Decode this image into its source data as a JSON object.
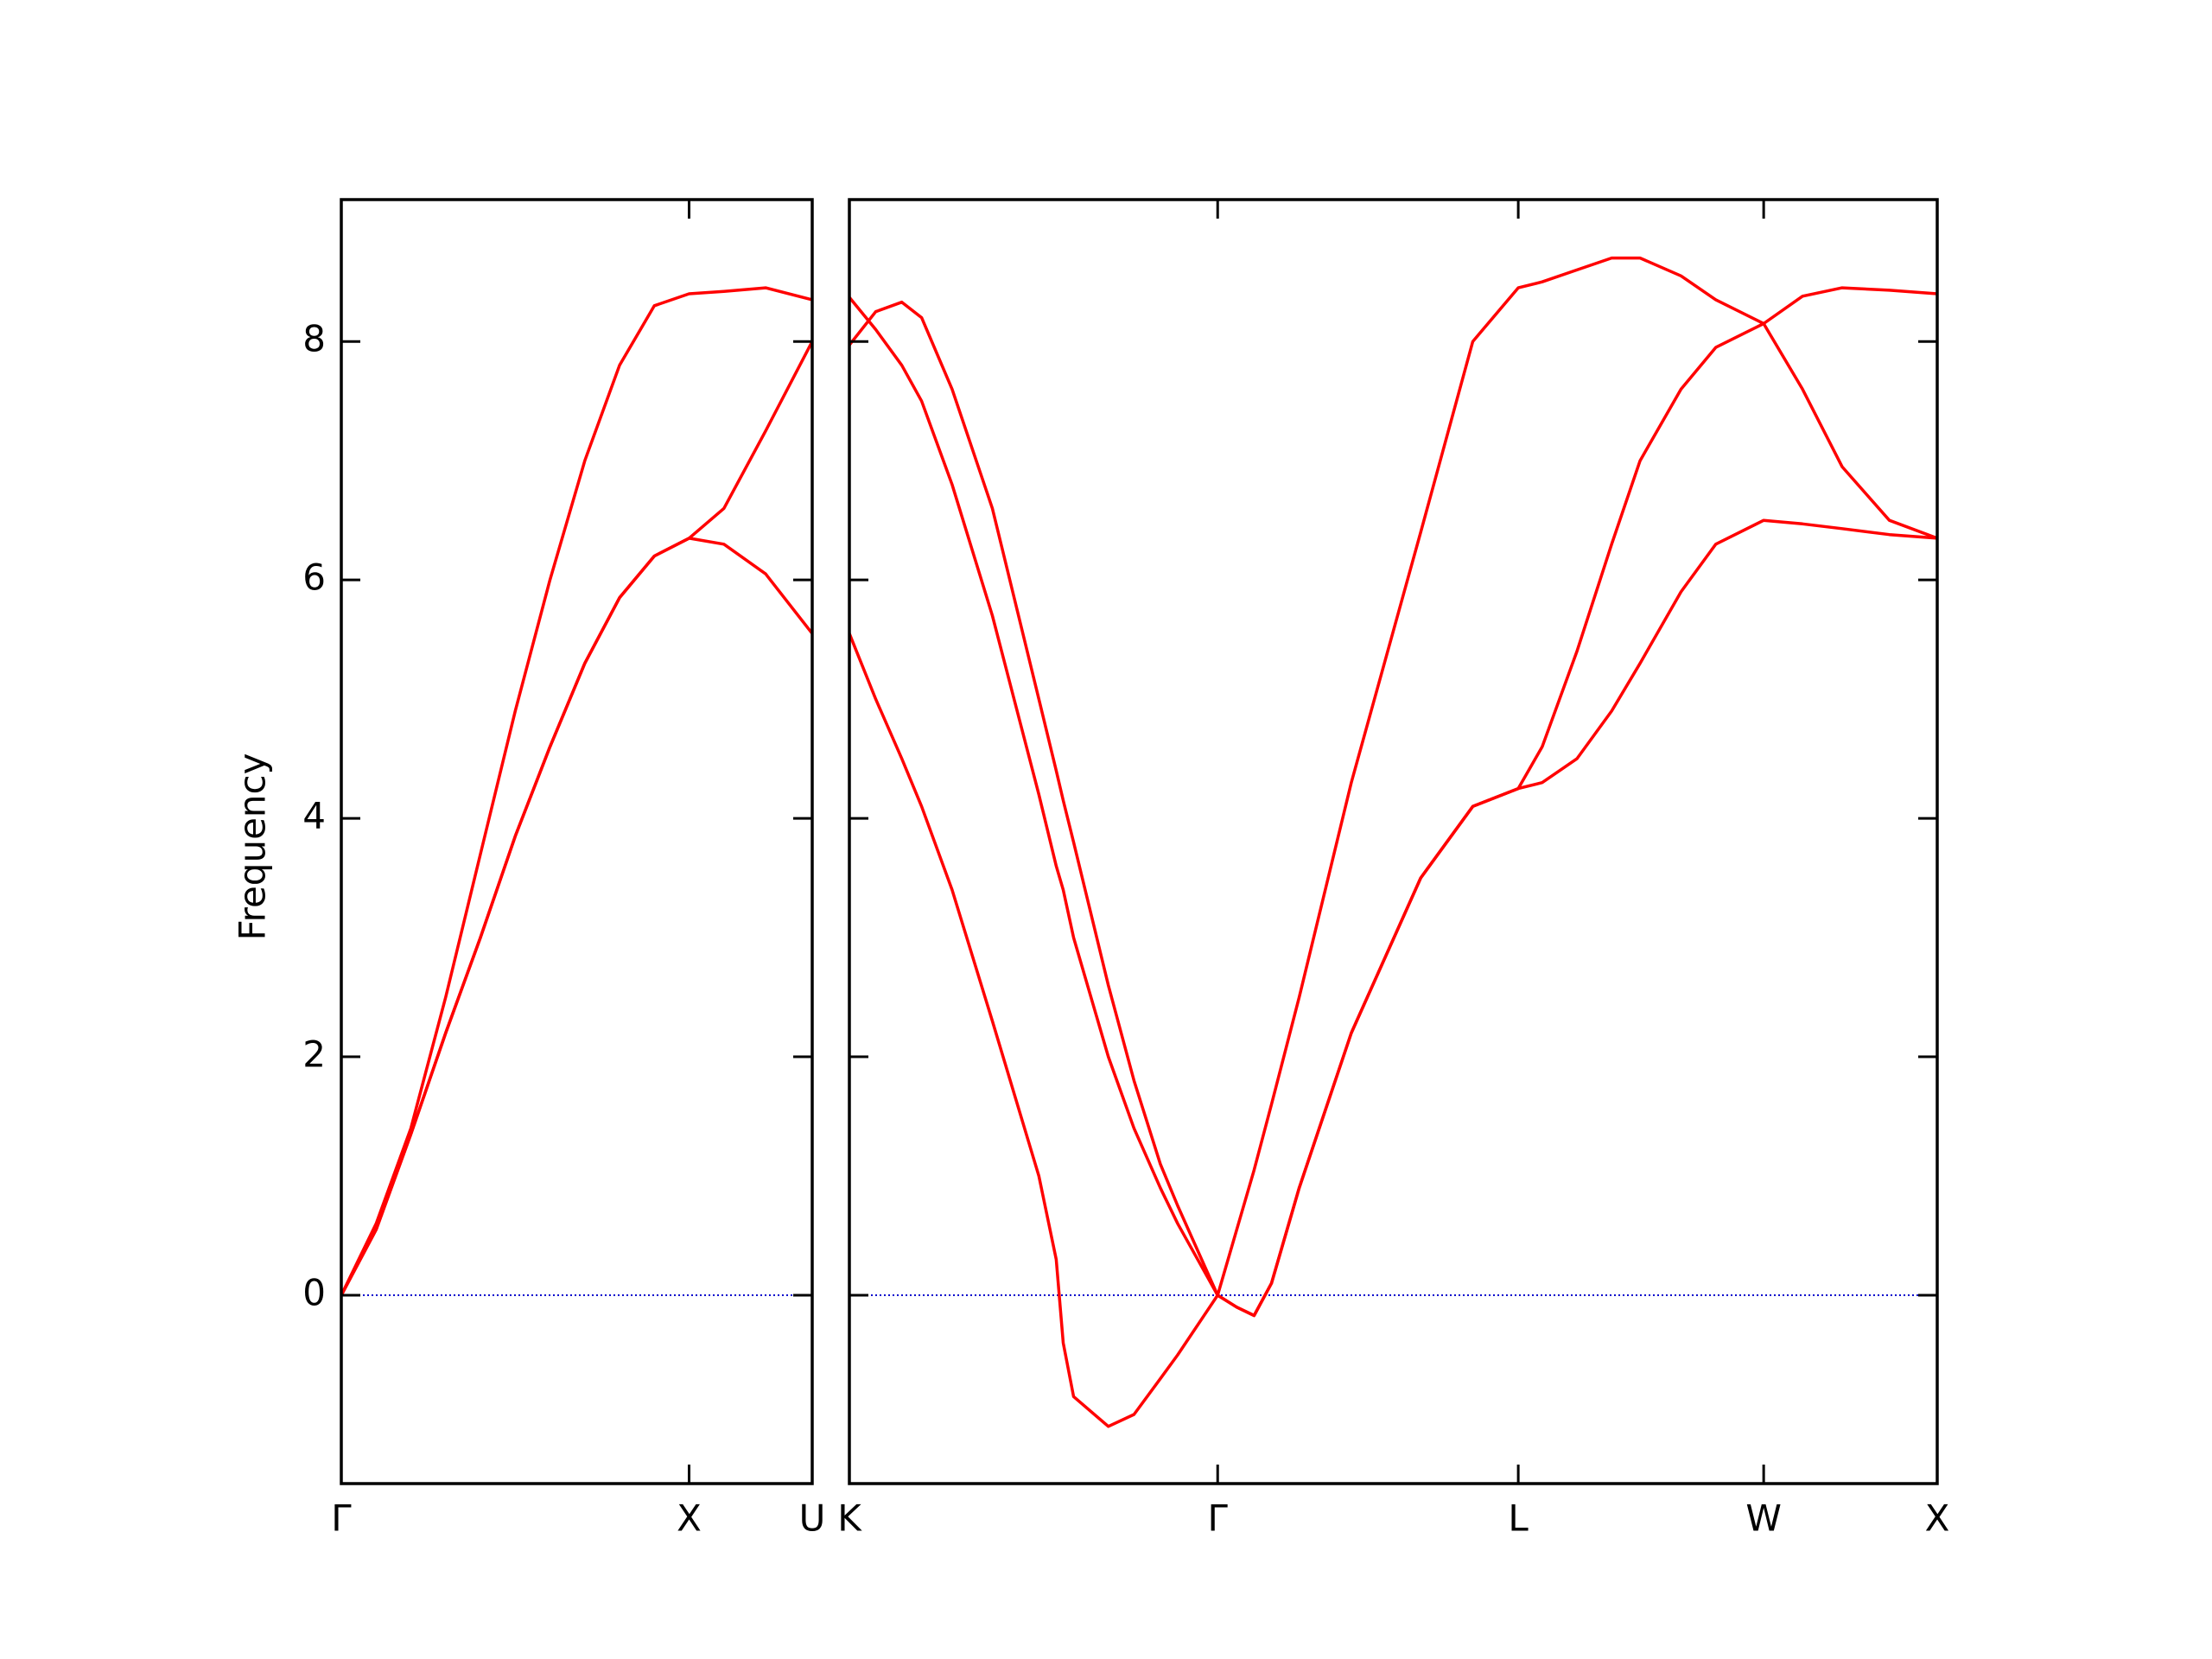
{
  "chart_data": [
    {
      "type": "line",
      "ylabel": "Frequency",
      "xlim": [
        0,
        1.354
      ],
      "ylim": [
        -1.58,
        9.19
      ],
      "xticks": [
        {
          "value": 0,
          "label": "Γ"
        },
        {
          "value": 1,
          "label": "X"
        },
        {
          "value": 1.354,
          "label": "U"
        }
      ],
      "yticks": [
        0,
        2,
        4,
        6,
        8
      ],
      "hline": 0,
      "hline_color": "#0000cc",
      "x": [
        0,
        0.1,
        0.2,
        0.3,
        0.4,
        0.5,
        0.6,
        0.7,
        0.8,
        0.9,
        1.0,
        1.1,
        1.22,
        1.354
      ],
      "series": [
        {
          "color": "#ff0000",
          "values": [
            0,
            0.6,
            1.4,
            2.5,
            3.7,
            4.9,
            6.0,
            7.0,
            7.8,
            8.3,
            8.4,
            8.42,
            8.45,
            8.35
          ]
        },
        {
          "color": "#ff0000",
          "values": [
            0,
            0.55,
            1.35,
            2.2,
            3.0,
            3.85,
            4.6,
            5.3,
            5.85,
            6.2,
            6.35,
            6.6,
            7.25,
            8.0
          ]
        },
        {
          "color": "#ff0000",
          "values": [
            0,
            0.55,
            1.35,
            2.2,
            3.0,
            3.85,
            4.6,
            5.3,
            5.85,
            6.2,
            6.35,
            6.3,
            6.05,
            5.55
          ]
        }
      ]
    },
    {
      "type": "line",
      "xlim": [
        1.354,
        4.488
      ],
      "ylim": [
        -1.58,
        9.19
      ],
      "xticks": [
        {
          "value": 1.354,
          "label": "K"
        },
        {
          "value": 2.415,
          "label": "Γ"
        },
        {
          "value": 3.281,
          "label": "L"
        },
        {
          "value": 3.988,
          "label": "W"
        },
        {
          "value": 4.488,
          "label": "X"
        }
      ],
      "hline": 0,
      "hline_color": "#0000cc",
      "x": [
        1.354,
        1.43,
        1.505,
        1.562,
        1.65,
        1.766,
        1.9,
        1.95,
        1.97,
        2.0,
        2.1,
        2.174,
        2.25,
        2.3,
        2.415,
        2.47,
        2.52,
        2.57,
        2.65,
        2.8,
        3.0,
        3.15,
        3.281,
        3.35,
        3.45,
        3.55,
        3.632,
        3.75,
        3.85,
        3.988,
        4.1,
        4.214,
        4.35,
        4.488
      ],
      "series": [
        {
          "color": "#ff0000",
          "values": [
            5.55,
            5.0,
            4.5,
            4.1,
            3.4,
            2.3,
            1.0,
            0.3,
            -0.4,
            -0.85,
            -1.1,
            -1.0,
            -0.7,
            -0.5,
            0,
            0.55,
            1.05,
            1.6,
            2.5,
            4.3,
            6.4,
            8.0,
            8.45,
            8.5,
            8.6,
            8.7,
            8.7,
            8.55,
            8.35,
            8.15,
            7.6,
            6.95,
            6.5,
            6.35
          ]
        },
        {
          "color": "#ff0000",
          "values": [
            8.37,
            8.1,
            7.8,
            7.5,
            6.8,
            5.7,
            4.2,
            3.6,
            3.4,
            3.0,
            2.0,
            1.4,
            0.9,
            0.6,
            0,
            -0.1,
            -0.17,
            0.1,
            0.9,
            2.2,
            3.5,
            4.1,
            4.25,
            4.6,
            5.4,
            6.3,
            7.0,
            7.6,
            7.95,
            8.15,
            8.38,
            8.45,
            8.43,
            8.4
          ]
        },
        {
          "color": "#ff0000",
          "values": [
            7.97,
            8.25,
            8.33,
            8.2,
            7.6,
            6.6,
            5.0,
            4.4,
            4.15,
            3.8,
            2.6,
            1.8,
            1.1,
            0.75,
            0,
            -0.1,
            -0.17,
            0.1,
            0.9,
            2.2,
            3.5,
            4.1,
            4.25,
            4.3,
            4.5,
            4.9,
            5.3,
            5.9,
            6.3,
            6.5,
            6.47,
            6.43,
            6.38,
            6.35
          ]
        }
      ]
    }
  ]
}
